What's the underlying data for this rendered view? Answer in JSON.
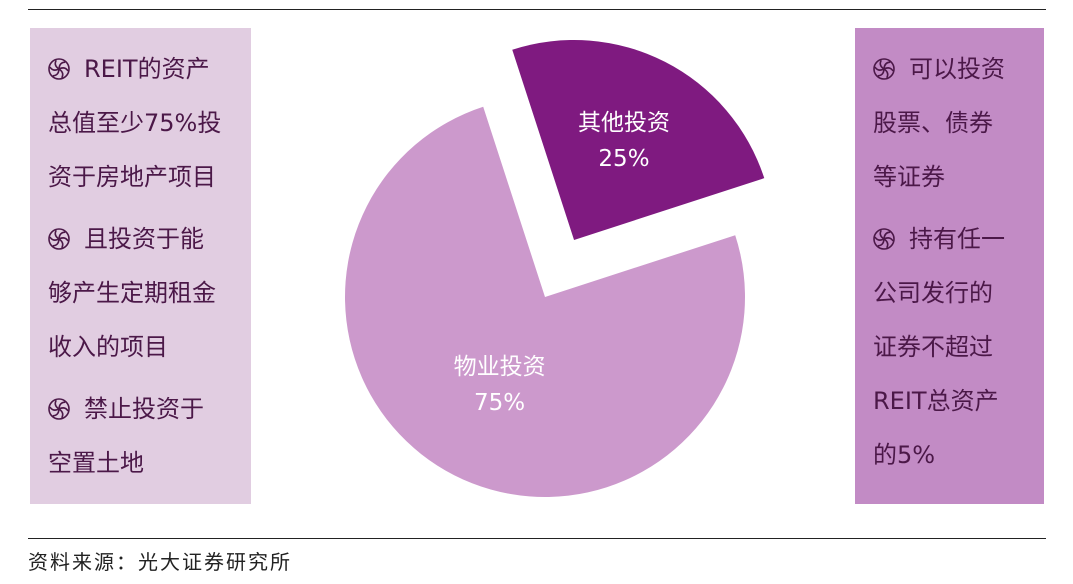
{
  "colors": {
    "left_panel": "#e1cde1",
    "right_panel": "#c28bc5",
    "slice_property": "#cc99cc",
    "slice_other": "#7f1a80",
    "text": "#4b1848"
  },
  "left_panel": {
    "icon": "spiral-bullet-icon",
    "items": [
      {
        "lines": [
          "REIT的资产",
          "总值至少75%投",
          "资于房地产项目"
        ]
      },
      {
        "lines": [
          "且投资于能",
          "够产生定期租金",
          "收入的项目"
        ]
      },
      {
        "lines": [
          "禁止投资于",
          "空置土地"
        ]
      }
    ]
  },
  "right_panel": {
    "icon": "spiral-bullet-icon",
    "items": [
      {
        "lines": [
          "可以投资",
          "股票、债券",
          "等证券"
        ]
      },
      {
        "lines": [
          "持有任一",
          "公司发行的",
          "证券不超过",
          "REIT总资产",
          "的5%"
        ]
      }
    ]
  },
  "chart_data": {
    "type": "pie",
    "slices": [
      {
        "label": "物业投资",
        "value": 75,
        "value_label": "75%",
        "color": "#cc99cc",
        "exploded": false
      },
      {
        "label": "其他投资",
        "value": 25,
        "value_label": "25%",
        "color": "#7f1a80",
        "exploded": true
      }
    ]
  },
  "source": "资料来源：光大证券研究所"
}
